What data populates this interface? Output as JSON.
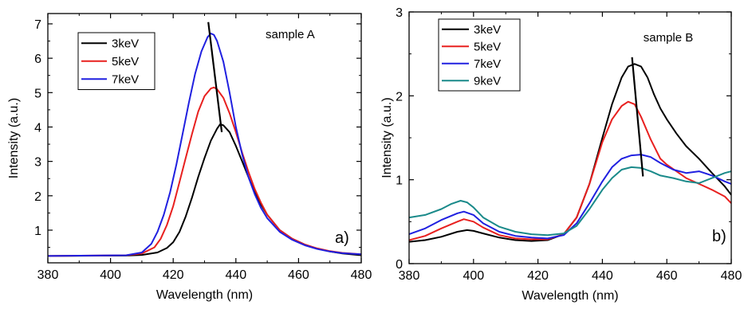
{
  "chart_data": [
    {
      "type": "line",
      "panel_label": "a)",
      "annotation": "sample A",
      "xlabel": "Wavelength (nm)",
      "ylabel": "Intensity (a.u.)",
      "xlim": [
        380,
        480
      ],
      "ylim": [
        0.05,
        7.3
      ],
      "xticks": [
        380,
        400,
        420,
        440,
        460,
        480
      ],
      "yticks": [
        1,
        2,
        3,
        4,
        5,
        6,
        7
      ],
      "grid": false,
      "legend_position": "top-left",
      "series": [
        {
          "name": "3keV",
          "color": "#000000",
          "x": [
            380,
            405,
            410,
            415,
            418,
            420,
            422,
            424,
            426,
            428,
            430,
            432,
            434,
            435,
            436,
            438,
            440,
            442,
            444,
            446,
            448,
            450,
            454,
            458,
            462,
            466,
            470,
            474,
            480
          ],
          "y": [
            0.25,
            0.26,
            0.28,
            0.35,
            0.48,
            0.65,
            0.95,
            1.4,
            1.95,
            2.55,
            3.1,
            3.6,
            3.95,
            4.08,
            4.05,
            3.85,
            3.45,
            3.0,
            2.55,
            2.1,
            1.75,
            1.45,
            1.0,
            0.75,
            0.58,
            0.46,
            0.38,
            0.32,
            0.27
          ]
        },
        {
          "name": "5keV",
          "color": "#e8201f",
          "x": [
            380,
            405,
            410,
            414,
            416,
            418,
            420,
            422,
            424,
            426,
            428,
            430,
            432,
            433,
            434,
            436,
            438,
            440,
            442,
            444,
            446,
            448,
            450,
            454,
            458,
            462,
            466,
            470,
            474,
            480
          ],
          "y": [
            0.25,
            0.27,
            0.32,
            0.5,
            0.75,
            1.15,
            1.7,
            2.4,
            3.1,
            3.8,
            4.45,
            4.9,
            5.12,
            5.15,
            5.1,
            4.85,
            4.4,
            3.85,
            3.25,
            2.7,
            2.2,
            1.8,
            1.45,
            1.0,
            0.75,
            0.58,
            0.47,
            0.39,
            0.34,
            0.3
          ]
        },
        {
          "name": "7keV",
          "color": "#2020e0",
          "x": [
            380,
            405,
            410,
            413,
            415,
            417,
            419,
            421,
            423,
            425,
            427,
            429,
            431,
            432,
            433,
            434,
            436,
            438,
            440,
            442,
            444,
            446,
            448,
            450,
            454,
            458,
            462,
            466,
            470,
            474,
            480
          ],
          "y": [
            0.25,
            0.27,
            0.35,
            0.6,
            0.95,
            1.45,
            2.1,
            2.9,
            3.8,
            4.7,
            5.55,
            6.2,
            6.62,
            6.72,
            6.68,
            6.5,
            5.9,
            5.0,
            4.0,
            3.2,
            2.55,
            2.05,
            1.65,
            1.35,
            0.95,
            0.72,
            0.56,
            0.45,
            0.38,
            0.33,
            0.3
          ]
        },
        {
          "name": "",
          "color": "#000000",
          "x": [
            431.2,
            435.5
          ],
          "y": [
            7.05,
            3.85
          ]
        }
      ]
    },
    {
      "type": "line",
      "panel_label": "b)",
      "annotation": "sample B",
      "xlabel": "Wavelength (nm)",
      "ylabel": "Intensity (a.u.)",
      "xlim": [
        380,
        480
      ],
      "ylim": [
        0,
        3
      ],
      "xticks": [
        380,
        400,
        420,
        440,
        460,
        480
      ],
      "yticks": [
        0,
        1,
        2,
        3
      ],
      "grid": false,
      "legend_position": "top-left",
      "series": [
        {
          "name": "3keV",
          "color": "#000000",
          "x": [
            380,
            385,
            390,
            395,
            398,
            400,
            403,
            408,
            413,
            418,
            423,
            428,
            432,
            436,
            440,
            443,
            446,
            448,
            450,
            452,
            454,
            456,
            458,
            460,
            463,
            466,
            470,
            474,
            478,
            480
          ],
          "y": [
            0.26,
            0.28,
            0.32,
            0.38,
            0.4,
            0.39,
            0.36,
            0.31,
            0.28,
            0.27,
            0.28,
            0.35,
            0.55,
            0.95,
            1.5,
            1.9,
            2.22,
            2.35,
            2.38,
            2.35,
            2.22,
            2.02,
            1.85,
            1.72,
            1.55,
            1.4,
            1.25,
            1.08,
            0.92,
            0.82
          ]
        },
        {
          "name": "5keV",
          "color": "#e8201f",
          "x": [
            380,
            385,
            390,
            395,
            397,
            400,
            403,
            408,
            413,
            418,
            423,
            428,
            432,
            436,
            440,
            443,
            446,
            448,
            450,
            452,
            455,
            458,
            460,
            463,
            466,
            470,
            474,
            478,
            480
          ],
          "y": [
            0.28,
            0.33,
            0.42,
            0.5,
            0.53,
            0.5,
            0.43,
            0.34,
            0.3,
            0.29,
            0.29,
            0.35,
            0.55,
            0.95,
            1.45,
            1.72,
            1.88,
            1.93,
            1.9,
            1.75,
            1.48,
            1.25,
            1.18,
            1.1,
            1.02,
            0.95,
            0.88,
            0.8,
            0.72
          ]
        },
        {
          "name": "7keV",
          "color": "#2020e0",
          "x": [
            380,
            385,
            390,
            395,
            397,
            400,
            403,
            408,
            413,
            418,
            423,
            428,
            432,
            436,
            440,
            443,
            446,
            449,
            452,
            455,
            458,
            462,
            466,
            470,
            474,
            478,
            480
          ],
          "y": [
            0.35,
            0.42,
            0.52,
            0.6,
            0.62,
            0.58,
            0.48,
            0.38,
            0.33,
            0.31,
            0.3,
            0.34,
            0.48,
            0.72,
            0.98,
            1.15,
            1.25,
            1.29,
            1.3,
            1.27,
            1.2,
            1.12,
            1.08,
            1.1,
            1.05,
            0.98,
            0.95
          ]
        },
        {
          "name": "9keV",
          "color": "#1a8a8a",
          "x": [
            380,
            385,
            390,
            393,
            396,
            398,
            400,
            403,
            408,
            413,
            418,
            423,
            428,
            432,
            436,
            440,
            443,
            446,
            449,
            452,
            455,
            458,
            462,
            466,
            470,
            474,
            478,
            480
          ],
          "y": [
            0.55,
            0.58,
            0.65,
            0.71,
            0.75,
            0.73,
            0.67,
            0.55,
            0.44,
            0.38,
            0.35,
            0.34,
            0.36,
            0.45,
            0.65,
            0.88,
            1.02,
            1.12,
            1.15,
            1.14,
            1.1,
            1.05,
            1.02,
            0.98,
            0.96,
            1.02,
            1.08,
            1.1
          ]
        },
        {
          "name": "",
          "color": "#000000",
          "x": [
            449.2,
            452.6
          ],
          "y": [
            2.46,
            1.04
          ]
        }
      ]
    }
  ]
}
